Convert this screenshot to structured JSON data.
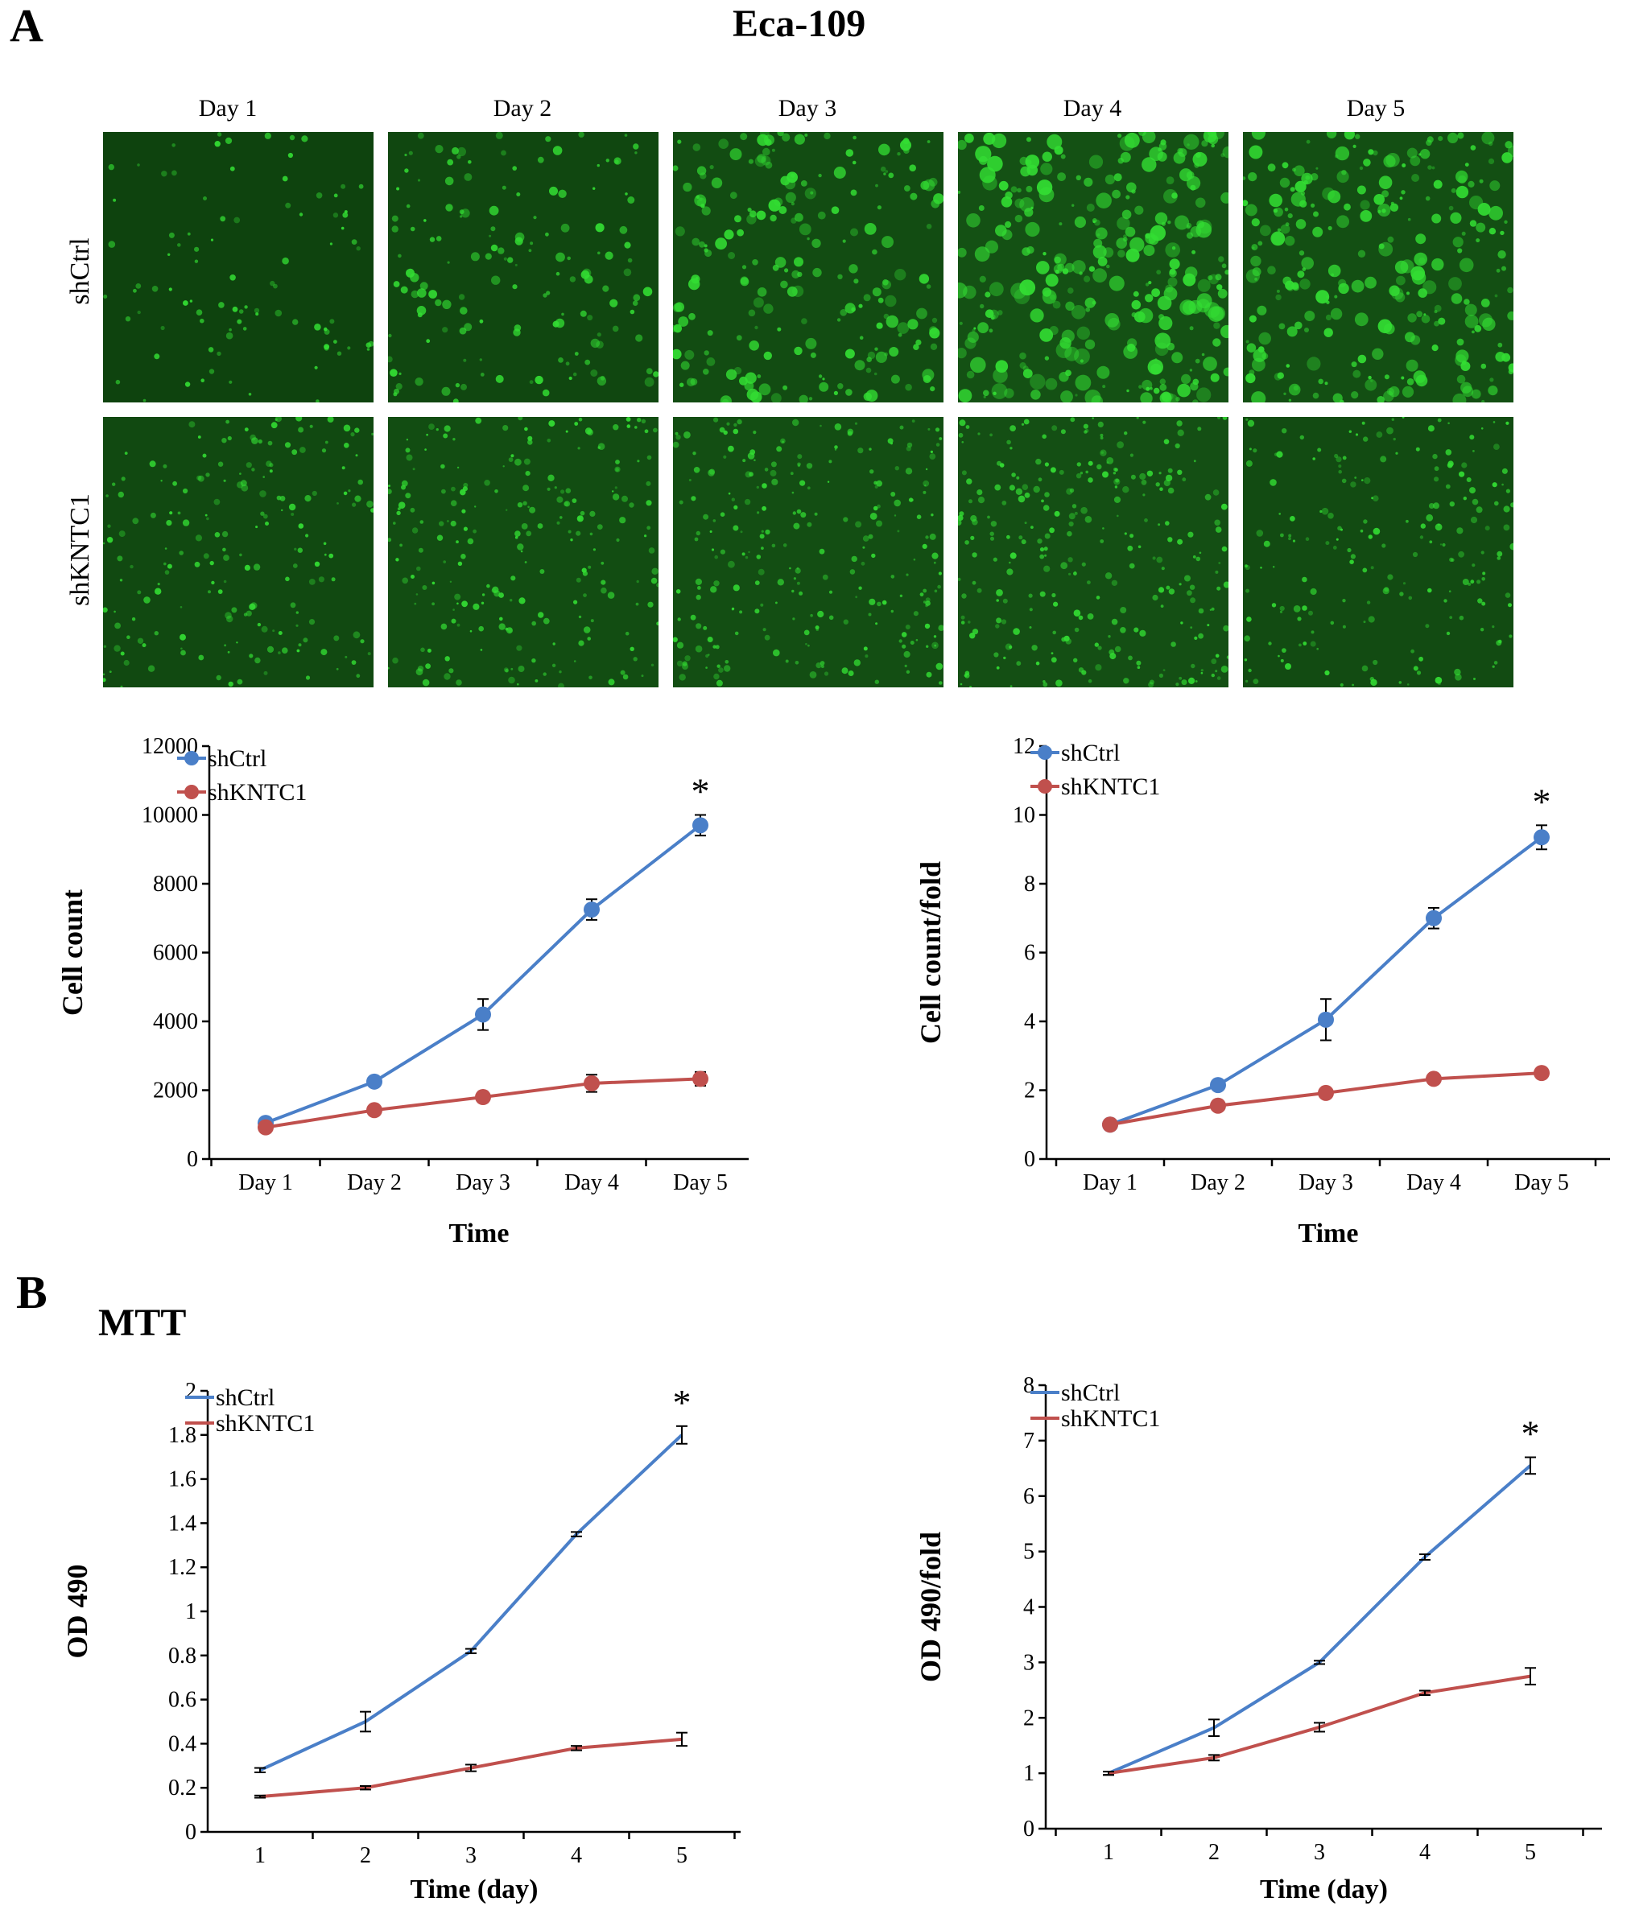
{
  "panel_a": {
    "letter": "A",
    "title": "Eca-109"
  },
  "panel_b": {
    "letter": "B",
    "title": "MTT"
  },
  "microscopy": {
    "day_labels": [
      "Day 1",
      "Day 2",
      "Day 3",
      "Day 4",
      "Day 5"
    ],
    "row_labels": [
      "shCtrl",
      "shKNTC1"
    ],
    "colors": {
      "background": "#0b3a0b",
      "cell": "#33dd33"
    },
    "density": [
      [
        0.12,
        0.35,
        0.6,
        0.95,
        0.8
      ],
      [
        0.5,
        0.65,
        0.75,
        0.85,
        0.55
      ]
    ]
  },
  "chart_data": [
    {
      "type": "line",
      "xlabel": "Time",
      "ylabel": "Cell count",
      "categories": [
        "Day 1",
        "Day 2",
        "Day 3",
        "Day 4",
        "Day 5"
      ],
      "ylim": [
        0,
        12000
      ],
      "yticks": [
        "0",
        "2000",
        "4000",
        "6000",
        "8000",
        "10000",
        "12000"
      ],
      "markers": true,
      "legend": "top-left",
      "significance": {
        "label": "*",
        "series": 0,
        "index": 4
      },
      "series": [
        {
          "name": "shCtrl",
          "color": "#4a7fc8",
          "values": [
            1050,
            2250,
            4200,
            7250,
            9700
          ],
          "errors": [
            80,
            100,
            450,
            300,
            300
          ]
        },
        {
          "name": "shKNTC1",
          "color": "#c0504d",
          "values": [
            920,
            1420,
            1800,
            2200,
            2330
          ],
          "errors": [
            60,
            80,
            150,
            250,
            200
          ]
        }
      ]
    },
    {
      "type": "line",
      "xlabel": "Time",
      "ylabel": "Cell count/fold",
      "categories": [
        "Day 1",
        "Day 2",
        "Day 3",
        "Day 4",
        "Day 5"
      ],
      "ylim": [
        0,
        12
      ],
      "yticks": [
        "0",
        "2",
        "4",
        "6",
        "8",
        "10",
        "12"
      ],
      "markers": true,
      "legend": "top-left",
      "significance": {
        "label": "*",
        "series": 0,
        "index": 4
      },
      "series": [
        {
          "name": "shCtrl",
          "color": "#4a7fc8",
          "values": [
            1.0,
            2.15,
            4.05,
            7.0,
            9.35
          ],
          "errors": [
            0.05,
            0.12,
            0.6,
            0.3,
            0.35
          ]
        },
        {
          "name": "shKNTC1",
          "color": "#c0504d",
          "values": [
            1.0,
            1.55,
            1.92,
            2.33,
            2.5
          ],
          "errors": [
            0.05,
            0.06,
            0.08,
            0.08,
            0.08
          ]
        }
      ]
    },
    {
      "type": "line",
      "xlabel": "Time (day)",
      "ylabel": "OD 490",
      "categories": [
        "1",
        "2",
        "3",
        "4",
        "5"
      ],
      "ylim": [
        0,
        2
      ],
      "yticks": [
        "0",
        "0.2",
        "0.4",
        "0.6",
        "0.8",
        "1",
        "1.2",
        "1.4",
        "1.6",
        "1.8",
        "2"
      ],
      "markers": false,
      "legend": "top-left",
      "significance": {
        "label": "*",
        "series": 0,
        "index": 4
      },
      "series": [
        {
          "name": "shCtrl",
          "color": "#4a7fc8",
          "values": [
            0.28,
            0.5,
            0.82,
            1.35,
            1.8
          ],
          "errors": [
            0.01,
            0.045,
            0.01,
            0.01,
            0.04
          ]
        },
        {
          "name": "shKNTC1",
          "color": "#c0504d",
          "values": [
            0.16,
            0.2,
            0.29,
            0.38,
            0.42
          ],
          "errors": [
            0.005,
            0.008,
            0.015,
            0.01,
            0.03
          ]
        }
      ]
    },
    {
      "type": "line",
      "xlabel": "Time (day)",
      "ylabel": "OD 490/fold",
      "categories": [
        "1",
        "2",
        "3",
        "4",
        "5"
      ],
      "ylim": [
        0,
        8
      ],
      "yticks": [
        "0",
        "1",
        "2",
        "3",
        "4",
        "5",
        "6",
        "7",
        "8"
      ],
      "markers": false,
      "legend": "top-left",
      "significance": {
        "label": "*",
        "series": 0,
        "index": 4
      },
      "series": [
        {
          "name": "shCtrl",
          "color": "#4a7fc8",
          "values": [
            1.0,
            1.82,
            3.0,
            4.9,
            6.55
          ],
          "errors": [
            0.03,
            0.15,
            0.03,
            0.05,
            0.15
          ]
        },
        {
          "name": "shKNTC1",
          "color": "#c0504d",
          "values": [
            1.0,
            1.28,
            1.83,
            2.45,
            2.75
          ],
          "errors": [
            0.03,
            0.05,
            0.08,
            0.04,
            0.15
          ]
        }
      ]
    }
  ]
}
